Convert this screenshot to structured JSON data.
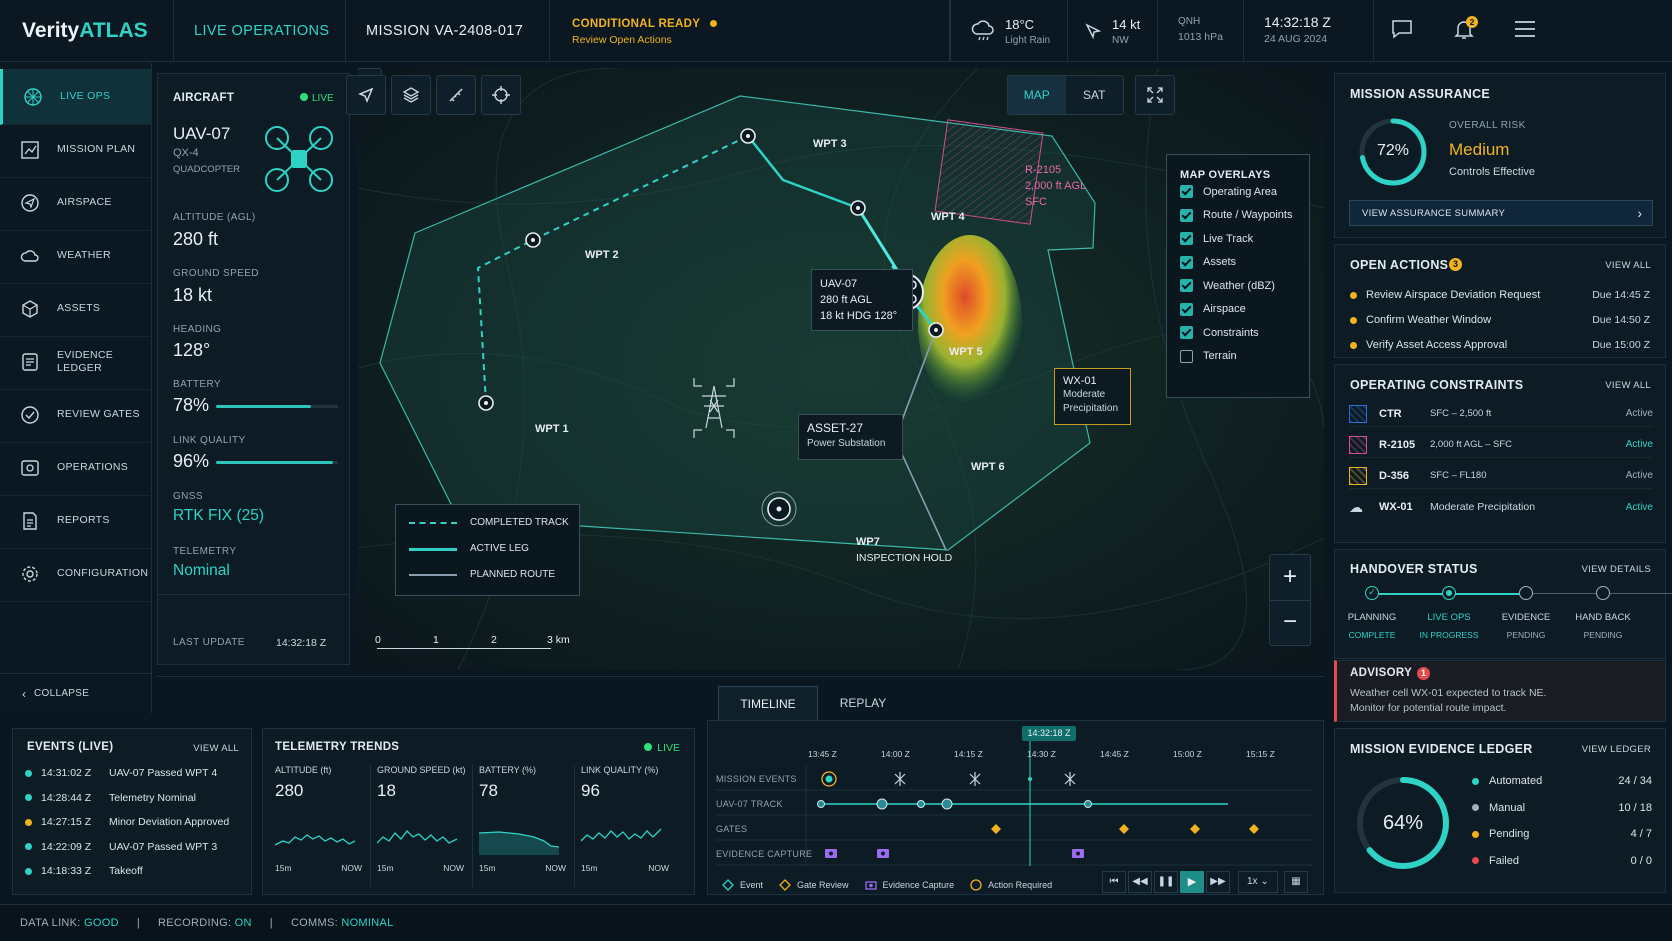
{
  "app": {
    "brand_a": "Verity",
    "brand_b": "ATLAS",
    "section": "LIVE OPERATIONS",
    "mission": "MISSION VA-2408-017"
  },
  "status": {
    "state": "CONDITIONAL READY",
    "sub": "Review Open Actions"
  },
  "weather": {
    "temp": "18°C",
    "cond": "Light Rain",
    "wind": "14 kt",
    "wind_dir": "NW",
    "qnh_label": "QNH",
    "qnh": "1013 hPa",
    "time": "14:32:18 Z",
    "date": "24 AUG 2024"
  },
  "notifications": {
    "count": "2"
  },
  "sidebar": {
    "items": [
      {
        "label": "LIVE OPS",
        "icon": "radar-icon"
      },
      {
        "label": "MISSION PLAN",
        "icon": "map-plan-icon"
      },
      {
        "label": "AIRSPACE",
        "icon": "airspace-icon"
      },
      {
        "label": "WEATHER",
        "icon": "cloud-icon"
      },
      {
        "label": "ASSETS",
        "icon": "assets-icon"
      },
      {
        "label": "EVIDENCE\nLEDGER",
        "icon": "ledger-icon"
      },
      {
        "label": "REVIEW GATES",
        "icon": "check-circle-icon"
      },
      {
        "label": "OPERATIONS",
        "icon": "operations-icon"
      },
      {
        "label": "REPORTS",
        "icon": "report-icon"
      },
      {
        "label": "CONFIGURATION",
        "icon": "gear-icon"
      }
    ],
    "collapse": "COLLAPSE"
  },
  "aircraft": {
    "title": "AIRCRAFT",
    "live": "LIVE",
    "id": "UAV-07",
    "model": "QX-4",
    "type": "QUADCOPTER",
    "altitude_label": "ALTITUDE (AGL)",
    "altitude": "280 ft",
    "speed_label": "GROUND SPEED",
    "speed": "18 kt",
    "heading_label": "HEADING",
    "heading": "128°",
    "battery_label": "BATTERY",
    "battery": "78%",
    "battery_level": 0.78,
    "link_label": "LINK QUALITY",
    "link": "96%",
    "link_level": 0.96,
    "gnss_label": "GNSS",
    "gnss": "RTK FIX (25)",
    "telemetry_label": "TELEMETRY",
    "telemetry": "Nominal",
    "update_label": "LAST UPDATE",
    "update": "14:32:18 Z"
  },
  "map": {
    "mode_map": "MAP",
    "mode_sat": "SAT",
    "waypoints": {
      "w1": "WPT 1",
      "w2": "WPT 2",
      "w3": "WPT 3",
      "w4": "WPT 4",
      "w5": "WPT 5",
      "w6": "WPT 6",
      "w7": "WP7",
      "w7_sub": "INSPECTION HOLD"
    },
    "uav_box": {
      "l1": "UAV-07",
      "l2": "280 ft AGL",
      "l3": "18 kt  HDG 128°"
    },
    "asset": {
      "l1": "ASSET-27",
      "l2": "Power Substation"
    },
    "restricted": {
      "l1": "R-2105",
      "l2": "2,000 ft AGL",
      "l3": "SFC"
    },
    "wx": {
      "l1": "WX-01",
      "l2": "Moderate",
      "l3": "Precipitation"
    },
    "legend": {
      "completed": "COMPLETED TRACK",
      "active": "ACTIVE LEG",
      "planned": "PLANNED ROUTE"
    },
    "scale": {
      "s0": "0",
      "s1": "1",
      "s2": "2",
      "s3": "3 km"
    },
    "overlays": {
      "title": "MAP OVERLAYS",
      "items": [
        {
          "label": "Operating Area",
          "checked": true
        },
        {
          "label": "Route / Waypoints",
          "checked": true
        },
        {
          "label": "Live Track",
          "checked": true
        },
        {
          "label": "Assets",
          "checked": true
        },
        {
          "label": "Weather (dBZ)",
          "checked": true
        },
        {
          "label": "Airspace",
          "checked": true
        },
        {
          "label": "Constraints",
          "checked": true
        },
        {
          "label": "Terrain",
          "checked": false
        }
      ]
    }
  },
  "assurance": {
    "title": "MISSION ASSURANCE",
    "pct": "72%",
    "pct_value": 0.72,
    "risk_label": "OVERALL RISK",
    "risk": "Medium",
    "controls": "Controls Effective",
    "button": "VIEW ASSURANCE SUMMARY"
  },
  "actions": {
    "title": "OPEN ACTIONS",
    "count": "3",
    "view": "VIEW ALL",
    "items": [
      {
        "label": "Review Airspace Deviation Request",
        "due": "Due 14:45 Z"
      },
      {
        "label": "Confirm Weather Window",
        "due": "Due 14:50 Z"
      },
      {
        "label": "Verify Asset Access Approval",
        "due": "Due 15:00 Z"
      }
    ]
  },
  "constraints": {
    "title": "OPERATING CONSTRAINTS",
    "view": "VIEW ALL",
    "items": [
      {
        "name": "CTR",
        "desc": "SFC – 2,500 ft",
        "status": "Active"
      },
      {
        "name": "R-2105",
        "desc": "2,000 ft AGL – SFC",
        "status": "Active"
      },
      {
        "name": "D-356",
        "desc": "SFC – FL180",
        "status": "Active"
      },
      {
        "name": "WX-01",
        "desc": "Moderate Precipitation",
        "status": "Active"
      }
    ]
  },
  "handover": {
    "title": "HANDOVER STATUS",
    "view": "VIEW DETAILS",
    "steps": [
      {
        "name": "PLANNING",
        "state": "COMPLETE"
      },
      {
        "name": "LIVE OPS",
        "state": "IN PROGRESS"
      },
      {
        "name": "EVIDENCE",
        "state": "PENDING"
      },
      {
        "name": "HAND BACK",
        "state": "PENDING"
      }
    ]
  },
  "advisory": {
    "title": "ADVISORY",
    "count": "1",
    "l1": "Weather cell WX-01 expected to track NE.",
    "l2": "Monitor for potential route impact."
  },
  "ledger": {
    "title": "MISSION EVIDENCE LEDGER",
    "view": "VIEW LEDGER",
    "pct": "64%",
    "pct_value": 0.64,
    "items": [
      {
        "label": "Automated",
        "val": "24 / 34"
      },
      {
        "label": "Manual",
        "val": "10 / 18"
      },
      {
        "label": "Pending",
        "val": "4 / 7"
      },
      {
        "label": "Failed",
        "val": "0 / 0"
      }
    ]
  },
  "tabs": {
    "timeline": "TIMELINE",
    "replay": "REPLAY"
  },
  "events": {
    "title": "EVENTS (LIVE)",
    "view": "VIEW ALL",
    "items": [
      {
        "time": "14:31:02 Z",
        "text": "UAV-07 Passed WPT 4"
      },
      {
        "time": "14:28:44 Z",
        "text": "Telemetry Nominal"
      },
      {
        "time": "14:27:15 Z",
        "text": "Minor Deviation Approved"
      },
      {
        "time": "14:22:09 Z",
        "text": "UAV-07 Passed WPT 3"
      },
      {
        "time": "14:18:33 Z",
        "text": "Takeoff"
      }
    ]
  },
  "trends": {
    "title": "TELEMETRY TRENDS",
    "live": "LIVE",
    "items": [
      {
        "label": "ALTITUDE (ft)",
        "val": "280",
        "from": "15m",
        "to": "NOW"
      },
      {
        "label": "GROUND SPEED (kt)",
        "val": "18",
        "from": "15m",
        "to": "NOW"
      },
      {
        "label": "BATTERY (%)",
        "val": "78",
        "from": "15m",
        "to": "NOW"
      },
      {
        "label": "LINK QUALITY (%)",
        "val": "96",
        "from": "15m",
        "to": "NOW"
      }
    ]
  },
  "timeline": {
    "now": "14:32:18 Z",
    "ticks": [
      "13:45 Z",
      "14:00 Z",
      "14:15 Z",
      "14:30 Z",
      "14:45 Z",
      "15:00 Z",
      "15:15 Z"
    ],
    "rows": [
      "MISSION EVENTS",
      "UAV-07 TRACK",
      "GATES",
      "EVIDENCE CAPTURE"
    ],
    "legend": {
      "event": "Event",
      "gate": "Gate Review",
      "evidence": "Evidence Capture",
      "action": "Action Required"
    },
    "speed": "1x"
  },
  "footer": {
    "link_label": "DATA LINK:",
    "link": "GOOD",
    "rec_label": "RECORDING:",
    "rec": "ON",
    "comms_label": "COMMS:",
    "comms": "NOMINAL"
  },
  "colors": {
    "accent": "#2ed3c6",
    "amber": "#f2b21f",
    "magenta": "#d0508f",
    "red": "#e5484d"
  }
}
